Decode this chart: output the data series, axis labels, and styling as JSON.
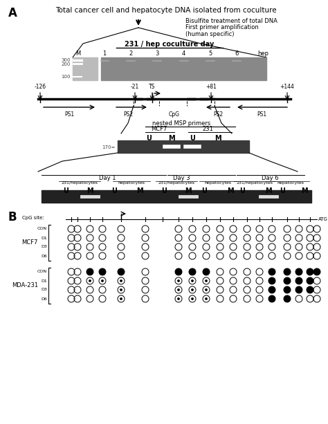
{
  "title_a": "Total cancer cell and hepatocyte DNA isolated from coculture",
  "bisulfite_text": "Bisulfite treatment of total DNA",
  "primer_text": "First primer amplification\n(human specific)",
  "gel_label": "231 / hep coculture day",
  "gel_columns": [
    "M",
    "1",
    "2",
    "3",
    "4",
    "5",
    "6",
    "hep"
  ],
  "nested_label": "nested MSP primers",
  "nested_sub": [
    "U",
    "M",
    "U",
    "M"
  ],
  "day_labels": [
    "Day 1",
    "Day 3",
    "Day 6"
  ],
  "day_sub_labels": [
    "231/hepatocytes",
    "hepatocytes",
    "231/hepatocytes",
    "hepatocytes",
    "231/hepatocytes",
    "hepatocytes"
  ],
  "day_um": [
    "U",
    "M",
    "U",
    "M",
    "U",
    "M",
    "U",
    "M",
    "U",
    "M",
    "U",
    "M"
  ],
  "cpg_label": "CpG site:",
  "atg_label": "ATG",
  "mcf7_label": "MCF7",
  "mda_label": "MDA-231",
  "row_labels_mcf7": [
    "CON",
    "D1",
    "D3",
    "D6"
  ],
  "row_labels_mda": [
    "CON",
    "D1",
    "D3",
    "D6"
  ],
  "bg_color": "#ffffff"
}
